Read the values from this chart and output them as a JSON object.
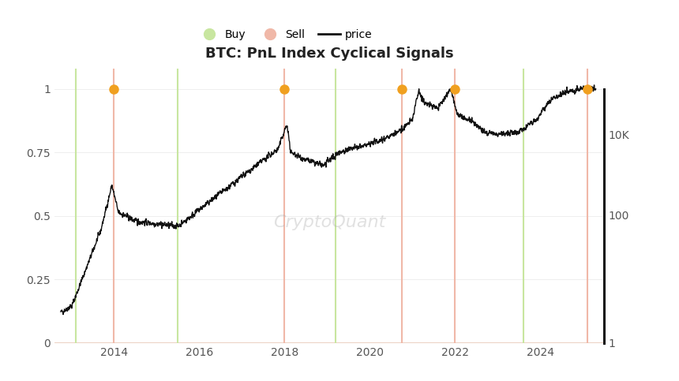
{
  "title": "BTC: PnL Index Cyclical Signals",
  "background_color": "#ffffff",
  "buy_lines": [
    2013.1,
    2015.5,
    2019.2,
    2023.6
  ],
  "sell_lines": [
    2014.0,
    2018.0,
    2020.75,
    2022.0,
    2025.1
  ],
  "sell_dot_x": [
    2014.0,
    2018.0,
    2020.75,
    2022.0,
    2025.1
  ],
  "sell_dot_y": [
    1.0,
    1.0,
    1.0,
    1.0,
    1.0
  ],
  "buy_color": "#c8e6a0",
  "sell_color": "#f0b8a8",
  "sell_dot_color": "#f0a020",
  "line_color": "#111111",
  "watermark": "CryptoQuant",
  "ylim": [
    0,
    1.08
  ],
  "xlim": [
    2012.6,
    2025.5
  ],
  "yticks": [
    0,
    0.25,
    0.5,
    0.75,
    1.0
  ],
  "ytick_labels": [
    "0",
    "0.25",
    "0.5",
    "0.75",
    "1"
  ],
  "xticks": [
    2014,
    2016,
    2018,
    2020,
    2022,
    2024
  ],
  "right_ytick_pos": [
    0.0,
    0.505,
    0.82,
    1.0
  ],
  "right_ytick_labels": [
    "1",
    "100",
    "10K",
    ""
  ],
  "hline_color": "#e8c8b8",
  "grid_line_color": "#eeeeee"
}
